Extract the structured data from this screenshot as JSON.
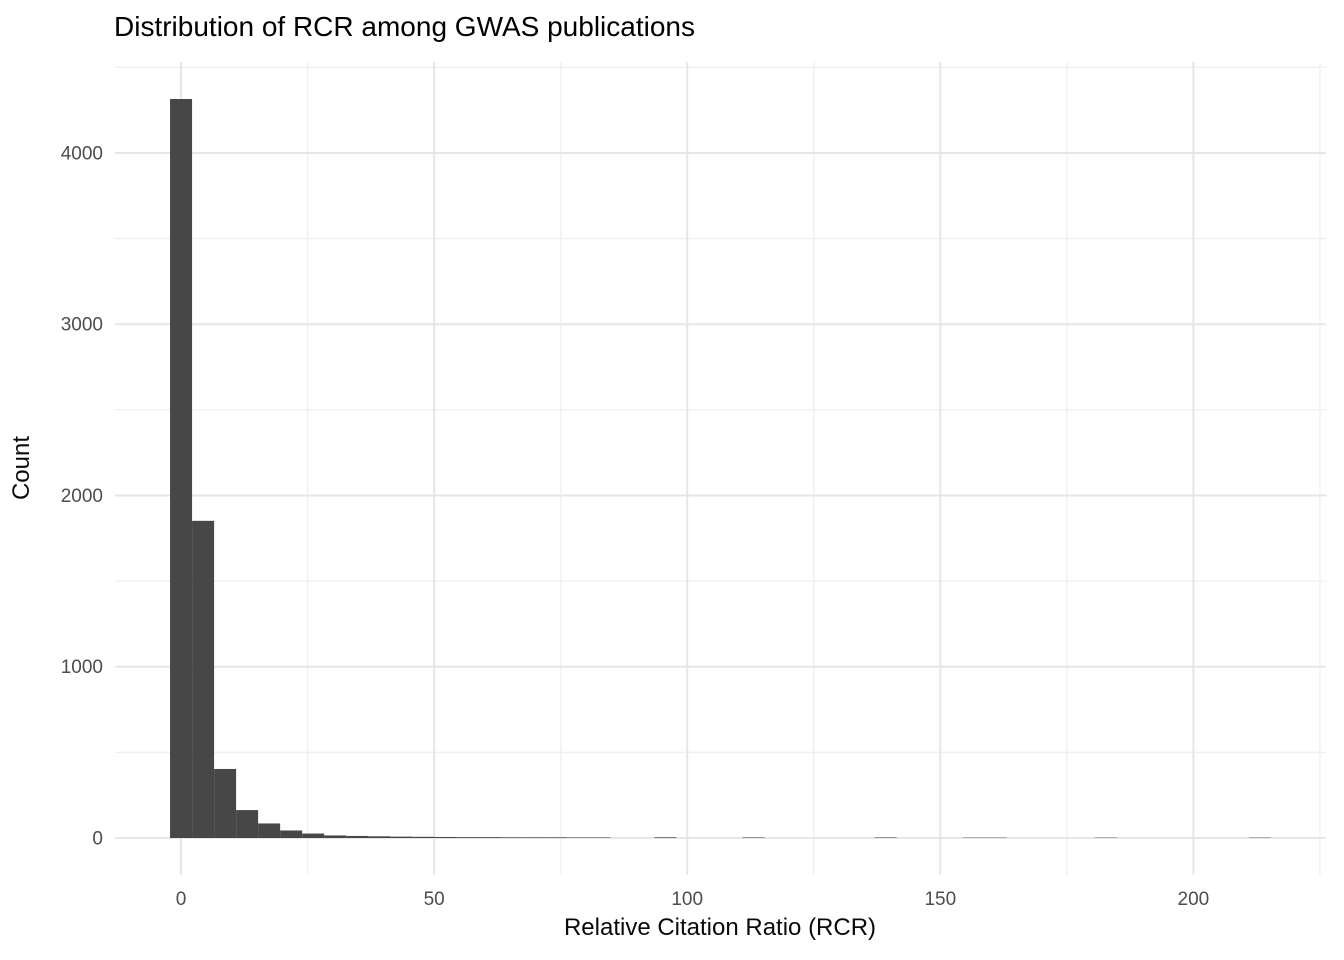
{
  "chart_data": {
    "type": "bar",
    "subtype": "histogram",
    "title": "Distribution of RCR among GWAS publications",
    "xlabel": "Relative Citation Ratio (RCR)",
    "ylabel": "Count",
    "x_ticks": [
      0,
      50,
      100,
      150,
      200
    ],
    "y_ticks": [
      0,
      1000,
      2000,
      3000,
      4000
    ],
    "x_minor_ticks": [
      25,
      75,
      125,
      175,
      225
    ],
    "y_minor_ticks": [
      500,
      1500,
      2500,
      3500,
      4500
    ],
    "xlim": [
      -13.05,
      226.2
    ],
    "ylim": [
      -216,
      4531
    ],
    "grid": true,
    "legend": false,
    "bin_width": 4.35,
    "first_bin_center": 0,
    "counts": [
      4315,
      1852,
      403,
      163,
      85,
      44,
      26,
      15,
      12,
      10,
      8,
      7,
      6,
      5,
      5,
      4,
      4,
      4,
      3,
      3,
      0,
      0,
      4,
      0,
      0,
      0,
      3,
      0,
      0,
      0,
      0,
      0,
      3,
      0,
      0,
      0,
      2,
      2,
      0,
      0,
      0,
      0,
      2,
      0,
      0,
      0,
      0,
      0,
      0,
      2
    ],
    "colors": {
      "bar": "#474747",
      "grid_major": "#e6e6e6",
      "grid_minor": "#f0f0f0",
      "background": "#ffffff",
      "tick_label": "#4d4d4d",
      "title_text": "#000000",
      "axis_title_text": "#0a0a0a"
    }
  }
}
